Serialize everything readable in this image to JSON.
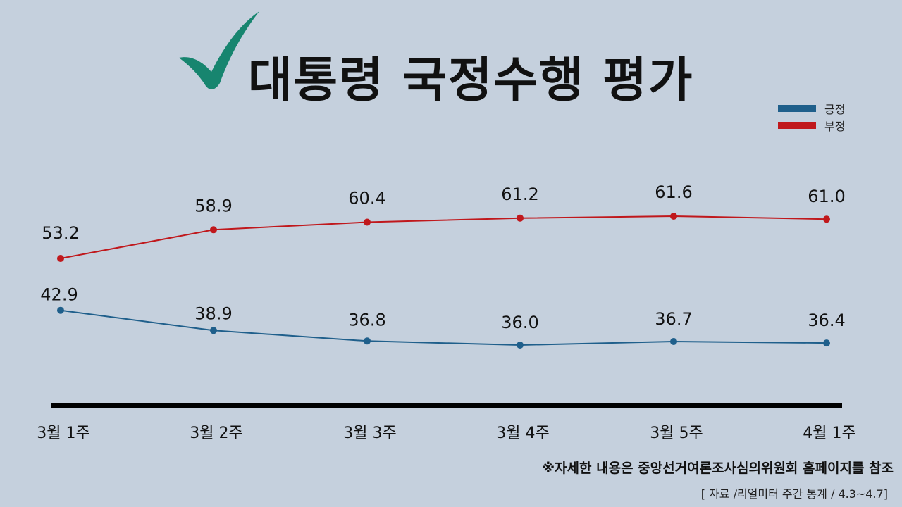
{
  "title": "대통령 국정수행 평가",
  "icons": {
    "title": "check-icon"
  },
  "colors": {
    "background": "#c5d0dd",
    "positive": "#1f5f8b",
    "negative": "#c0181c",
    "check": "#17856f",
    "axis": "#000000"
  },
  "legend": {
    "placement": "top-right",
    "items": [
      {
        "label": "긍정",
        "color": "#1f5f8b"
      },
      {
        "label": "부정",
        "color": "#c0181c"
      }
    ]
  },
  "footnote": "※자세한 내용은 중앙선거여론조사심의위원회 홈페이지를 참조",
  "source": "[ 자료 /리얼미터 주간 통계 / 4.3~4.7]",
  "chart_data": {
    "type": "line",
    "categories": [
      "3월 1주",
      "3월 2주",
      "3월 3주",
      "3월 4주",
      "3월 5주",
      "4월 1주"
    ],
    "series": [
      {
        "name": "긍정",
        "values": [
          42.9,
          38.9,
          36.8,
          36.0,
          36.7,
          36.4
        ],
        "color": "#1f5f8b"
      },
      {
        "name": "부정",
        "values": [
          53.2,
          58.9,
          60.4,
          61.2,
          61.6,
          61.0
        ],
        "color": "#c0181c"
      }
    ],
    "data_labels": true,
    "grid": false,
    "legend": "top-right"
  }
}
